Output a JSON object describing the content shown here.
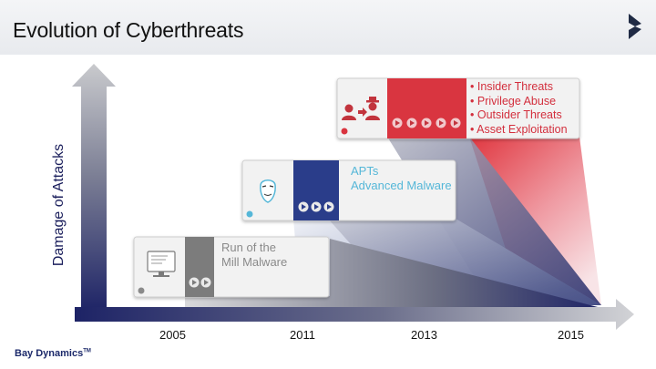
{
  "slide": {
    "title": "Evolution of Cyberthreats",
    "brand": "Bay Dynamics",
    "brand_mark": "TM"
  },
  "y_axis_label": "Damage of Attacks",
  "x_axis_ticks": [
    "2005",
    "2011",
    "2013",
    "2015"
  ],
  "eras": [
    {
      "lines": [
        "Run of the",
        "Mill Malware"
      ],
      "icon": "computer-monitor-icon",
      "accent": "#7c7c7c",
      "play_buttons": 2
    },
    {
      "lines": [
        "APTs",
        "Advanced Malware"
      ],
      "icon": "masked-face-icon",
      "accent": "#2b3d8a",
      "play_buttons": 3
    },
    {
      "items": [
        "Insider Threats",
        "Privilege Abuse",
        "Outsider Threats",
        "Asset Exploitation"
      ],
      "icon": "insider-outsider-people-icon",
      "accent": "#d9343f",
      "play_buttons": 5
    }
  ],
  "colors": {
    "navy": "#1d2366",
    "red": "#d9343f",
    "light_blue": "#55b7d8",
    "grey": "#8a8a8a"
  }
}
